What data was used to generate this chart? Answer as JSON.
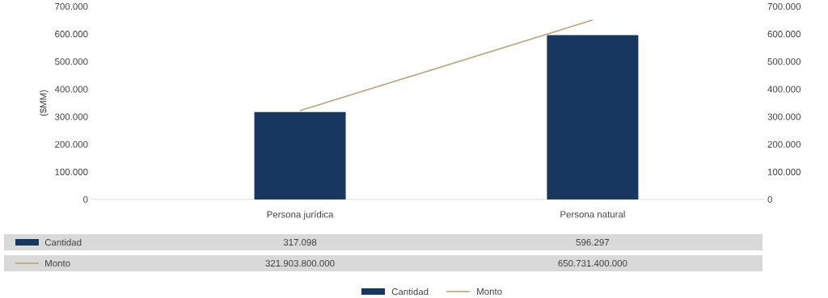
{
  "chart_data": {
    "type": "bar",
    "categories": [
      "Persona jurídica",
      "Persona natural"
    ],
    "ylabel": "($MM)",
    "ylim": [
      0,
      700000
    ],
    "yticks": [
      {
        "value": 0,
        "label": "0"
      },
      {
        "value": 100000,
        "label": "100.000"
      },
      {
        "value": 200000,
        "label": "200.000"
      },
      {
        "value": 300000,
        "label": "300.000"
      },
      {
        "value": 400000,
        "label": "400.000"
      },
      {
        "value": 500000,
        "label": "500.000"
      },
      {
        "value": 600000,
        "label": "600.000"
      },
      {
        "value": 700000,
        "label": "700.000"
      }
    ],
    "y2lim": [
      0,
      700000
    ],
    "y2ticks": [
      {
        "value": 0,
        "label": "0"
      },
      {
        "value": 100000,
        "label": "100.000"
      },
      {
        "value": 200000,
        "label": "200.000"
      },
      {
        "value": 300000,
        "label": "300.000"
      },
      {
        "value": 400000,
        "label": "400.000"
      },
      {
        "value": 500000,
        "label": "500.000"
      },
      {
        "value": 600000,
        "label": "600.000"
      },
      {
        "value": 700000,
        "label": "700.000"
      }
    ],
    "legend": "bottom",
    "annotations": [
      "321.903.800.000",
      "650.731.400.000"
    ],
    "series": [
      {
        "name": "Cantidad",
        "color": "#17375e",
        "values": [
          317098,
          596297
        ],
        "value_labels": [
          "317.098",
          "596.297"
        ]
      },
      {
        "name": "Monto",
        "type": "line",
        "axis": "y2",
        "color": "#b8a47c",
        "values": [
          322000,
          651000
        ]
      }
    ]
  }
}
